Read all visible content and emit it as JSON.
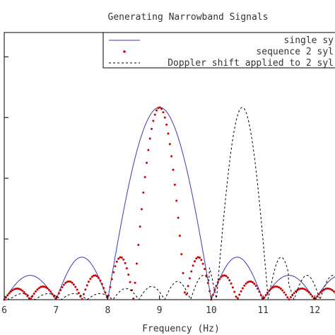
{
  "chart_data": {
    "type": "line",
    "title": "Generating Narrowband Signals",
    "xlabel": "Frequency (Hz)",
    "ylabel": "",
    "xlim": [
      6,
      12.5
    ],
    "ylim": [
      0,
      1.32
    ],
    "xticks": [
      "6",
      "7",
      "8",
      "9",
      "10",
      "11",
      "12"
    ],
    "xtick_values": [
      6,
      7,
      8,
      9,
      10,
      11,
      12
    ],
    "ytick_values": [
      0.3,
      0.6,
      0.9,
      1.2
    ],
    "grid": false,
    "legend_position": "top-right",
    "series": [
      {
        "name": "single sy",
        "style": "solid",
        "color": "#3a3ab8",
        "center": 9.0,
        "peak": 0.95,
        "first_null_offset": 1.0,
        "sidelobe_peaks": [
          {
            "x": 6.5,
            "y": 0.12
          },
          {
            "x": 7.55,
            "y": 0.21
          },
          {
            "x": 10.45,
            "y": 0.21
          },
          {
            "x": 11.5,
            "y": 0.12
          }
        ]
      },
      {
        "name": "sequence 2 syl",
        "style": "dotted",
        "color": "#d00000",
        "center": 9.0,
        "peak": 0.95,
        "first_null_offset": 0.5,
        "sidelobe_peaks": [
          {
            "x": 6.25,
            "y": 0.055
          },
          {
            "x": 6.75,
            "y": 0.065
          },
          {
            "x": 7.25,
            "y": 0.09
          },
          {
            "x": 7.75,
            "y": 0.12
          },
          {
            "x": 8.27,
            "y": 0.21
          },
          {
            "x": 9.73,
            "y": 0.21
          },
          {
            "x": 10.25,
            "y": 0.12
          },
          {
            "x": 10.75,
            "y": 0.09
          },
          {
            "x": 11.25,
            "y": 0.065
          },
          {
            "x": 11.75,
            "y": 0.055
          }
        ]
      },
      {
        "name": "Doppler shift applied to 2 syl",
        "style": "dashed",
        "color": "#000000",
        "center": 10.6,
        "peak": 0.95,
        "first_null_offset": 0.5,
        "sidelobe_peaks": [
          {
            "x": 7.85,
            "y": 0.03
          },
          {
            "x": 8.35,
            "y": 0.055
          },
          {
            "x": 8.85,
            "y": 0.065
          },
          {
            "x": 9.35,
            "y": 0.09
          },
          {
            "x": 9.85,
            "y": 0.12
          },
          {
            "x": 10.07,
            "y": 0.21
          },
          {
            "x": 11.13,
            "y": 0.21
          },
          {
            "x": 11.85,
            "y": 0.12
          }
        ]
      }
    ]
  }
}
